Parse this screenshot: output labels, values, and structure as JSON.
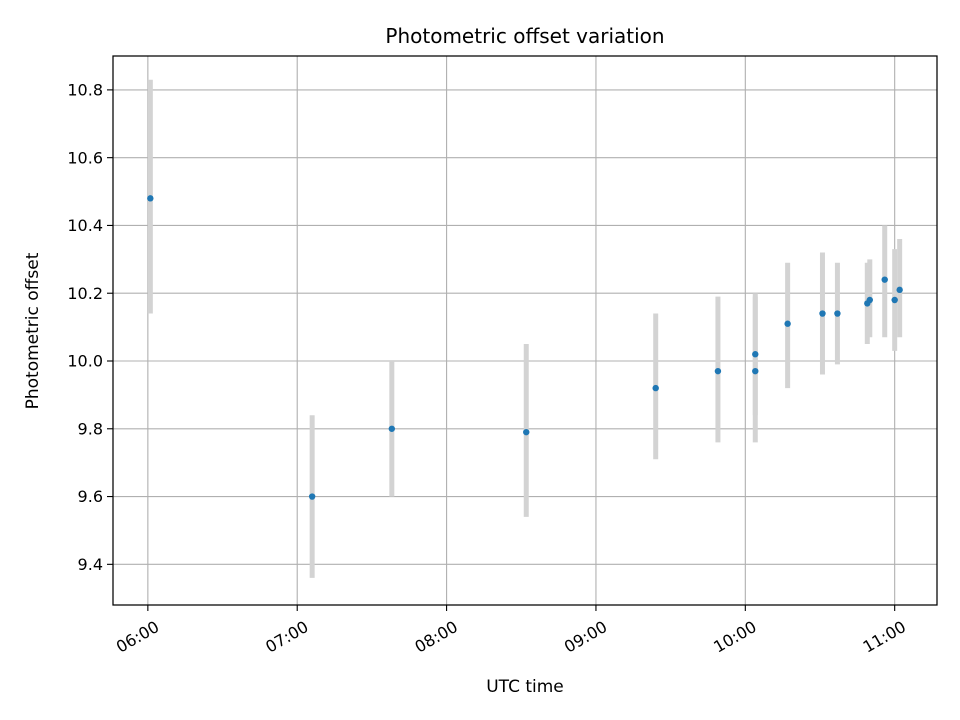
{
  "chart_data": {
    "type": "scatter",
    "title": "Photometric offset variation",
    "xlabel": "UTC time",
    "ylabel": "Photometric offset",
    "x_unit": "UTC time (HH:MM)",
    "xlim": [
      "05:46",
      "11:17"
    ],
    "ylim": [
      9.28,
      10.9
    ],
    "x_ticks": [
      "06:00",
      "07:00",
      "08:00",
      "09:00",
      "10:00",
      "11:00"
    ],
    "y_ticks": [
      "9.4",
      "9.6",
      "9.8",
      "10.0",
      "10.2",
      "10.4",
      "10.6",
      "10.8"
    ],
    "grid": true,
    "colors": {
      "point": "#1f77b4",
      "errorbar": "#d3d3d3",
      "grid": "#b0b0b0"
    },
    "series": [
      {
        "points": [
          {
            "x": "06:01",
            "y": 10.48,
            "err_low": 10.14,
            "err_high": 10.83
          },
          {
            "x": "07:06",
            "y": 9.6,
            "err_low": 9.36,
            "err_high": 9.84
          },
          {
            "x": "07:38",
            "y": 9.8,
            "err_low": 9.6,
            "err_high": 10.0
          },
          {
            "x": "08:32",
            "y": 9.79,
            "err_low": 9.54,
            "err_high": 10.05
          },
          {
            "x": "09:24",
            "y": 9.92,
            "err_low": 9.71,
            "err_high": 10.14
          },
          {
            "x": "09:49",
            "y": 9.97,
            "err_low": 9.76,
            "err_high": 10.19
          },
          {
            "x": "10:04",
            "y": 10.02,
            "err_low": 9.84,
            "err_high": 10.2
          },
          {
            "x": "10:04",
            "y": 9.97,
            "err_low": 9.76,
            "err_high": 10.19
          },
          {
            "x": "10:17",
            "y": 10.11,
            "err_low": 9.92,
            "err_high": 10.29
          },
          {
            "x": "10:31",
            "y": 10.14,
            "err_low": 9.96,
            "err_high": 10.32
          },
          {
            "x": "10:37",
            "y": 10.14,
            "err_low": 9.99,
            "err_high": 10.29
          },
          {
            "x": "10:49",
            "y": 10.17,
            "err_low": 10.05,
            "err_high": 10.29
          },
          {
            "x": "10:50",
            "y": 10.18,
            "err_low": 10.07,
            "err_high": 10.3
          },
          {
            "x": "10:56",
            "y": 10.24,
            "err_low": 10.07,
            "err_high": 10.4
          },
          {
            "x": "11:00",
            "y": 10.18,
            "err_low": 10.03,
            "err_high": 10.33
          },
          {
            "x": "11:02",
            "y": 10.21,
            "err_low": 10.07,
            "err_high": 10.36
          }
        ]
      }
    ]
  }
}
